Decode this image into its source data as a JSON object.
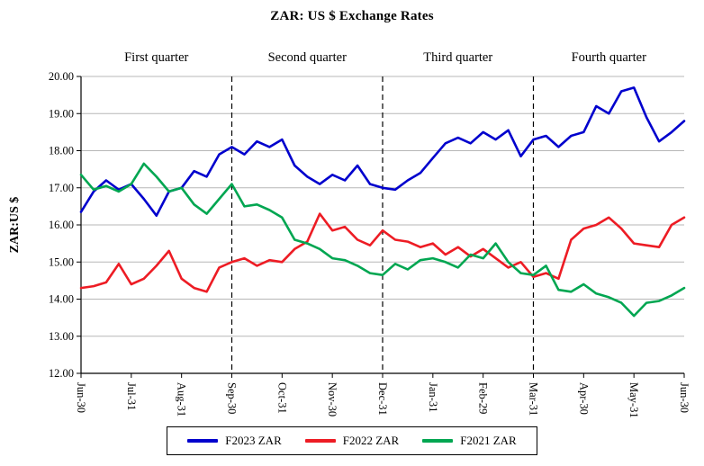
{
  "page": {
    "background": "#ffffff"
  },
  "chart_data": {
    "type": "line",
    "title": "ZAR: US $ Exchange Rates",
    "ylabel": "ZAR:US $",
    "xlabel": "",
    "ylim": [
      12,
      20
    ],
    "ytick_step": 1,
    "ytick_decimals": 2,
    "x_range": [
      0,
      12
    ],
    "x_tick_labels": [
      "Jun-30",
      "Jul-31",
      "Aug-31",
      "Sep-30",
      "Oct-31",
      "Nov-30",
      "Dec-31",
      "Jan-31",
      "Feb-29",
      "Mar-31",
      "Apr-30",
      "May-31",
      "Jun-30"
    ],
    "quarter_annotations": [
      {
        "label": "First quarter",
        "x": 1.5
      },
      {
        "label": "Second quarter",
        "x": 4.5
      },
      {
        "label": "Third quarter",
        "x": 7.5
      },
      {
        "label": "Fourth quarter",
        "x": 10.5
      }
    ],
    "divider_lines_x": [
      3,
      6,
      9
    ],
    "grid": "horizontal",
    "grid_color": "#b7b7b7",
    "axis_color": "#000000",
    "legend_position": "bottom",
    "series": [
      {
        "name": "F2023 ZAR",
        "color": "#0000CD",
        "x_start": 0,
        "x_step": 0.25,
        "values": [
          16.35,
          16.9,
          17.2,
          16.95,
          17.1,
          16.7,
          16.25,
          16.9,
          17.0,
          17.45,
          17.3,
          17.9,
          18.1,
          17.9,
          18.25,
          18.1,
          18.3,
          17.6,
          17.3,
          17.1,
          17.35,
          17.2,
          17.6,
          17.1,
          17.0,
          16.95,
          17.2,
          17.4,
          17.8,
          18.2,
          18.35,
          18.2,
          18.5,
          18.3,
          18.55,
          17.85,
          18.3,
          18.4,
          18.1,
          18.4,
          18.5,
          19.2,
          19.0,
          19.6,
          19.7,
          18.9,
          18.25,
          18.5,
          18.8
        ]
      },
      {
        "name": "F2022 ZAR",
        "color": "#ED1C24",
        "x_start": 0,
        "x_step": 0.25,
        "values": [
          14.3,
          14.35,
          14.45,
          14.95,
          14.4,
          14.55,
          14.9,
          15.3,
          14.55,
          14.3,
          14.2,
          14.85,
          15.0,
          15.1,
          14.9,
          15.05,
          15.0,
          15.35,
          15.55,
          16.3,
          15.85,
          15.95,
          15.6,
          15.45,
          15.85,
          15.6,
          15.55,
          15.4,
          15.5,
          15.2,
          15.4,
          15.15,
          15.35,
          15.1,
          14.85,
          15.0,
          14.6,
          14.7,
          14.55,
          15.6,
          15.9,
          16.0,
          16.2,
          15.9,
          15.5,
          15.45,
          15.4,
          16.0,
          16.2
        ]
      },
      {
        "name": "F2021 ZAR",
        "color": "#00A651",
        "x_start": 0,
        "x_step": 0.25,
        "values": [
          17.35,
          16.95,
          17.05,
          16.9,
          17.1,
          17.65,
          17.3,
          16.9,
          17.0,
          16.55,
          16.3,
          16.7,
          17.1,
          16.5,
          16.55,
          16.4,
          16.2,
          15.6,
          15.5,
          15.35,
          15.1,
          15.05,
          14.9,
          14.7,
          14.65,
          14.95,
          14.8,
          15.05,
          15.1,
          15.0,
          14.85,
          15.2,
          15.1,
          15.5,
          15.0,
          14.7,
          14.65,
          14.9,
          14.25,
          14.2,
          14.4,
          14.15,
          14.05,
          13.9,
          13.55,
          13.9,
          13.95,
          14.1,
          14.3
        ]
      }
    ]
  }
}
